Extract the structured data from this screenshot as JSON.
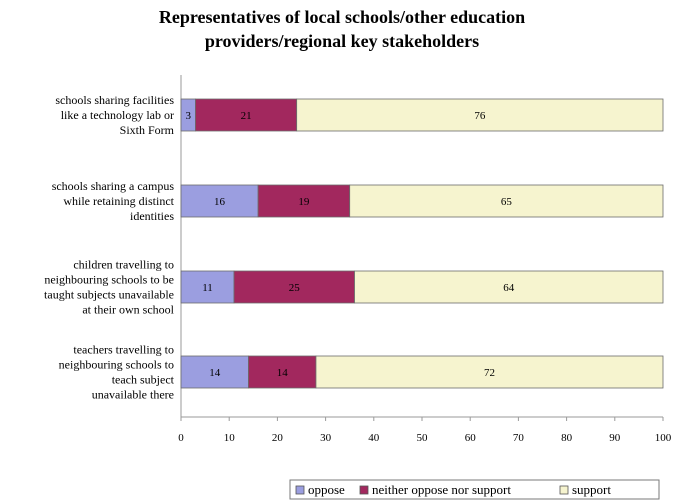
{
  "chart_data": {
    "type": "bar",
    "orientation": "horizontal",
    "stacked": true,
    "title_lines": [
      "Representatives of local schools/other education",
      "providers/regional key stakeholders"
    ],
    "categories": [
      "schools sharing facilities like a technology lab or Sixth Form",
      "schools sharing a campus while retaining distinct identities",
      "children travelling to neighbouring schools to be taught subjects unavailable at their own school",
      "teachers travelling to neighbouring schools to teach subject unavailable there"
    ],
    "category_lines": [
      [
        "schools sharing facilities",
        "like a technology lab or",
        "Sixth Form"
      ],
      [
        "schools sharing a campus",
        "while retaining distinct",
        "identities"
      ],
      [
        "children travelling to",
        "neighbouring schools to be",
        "taught subjects unavailable",
        "at their own school"
      ],
      [
        "teachers travelling to",
        "neighbouring schools to",
        "teach subject",
        "unavailable there"
      ]
    ],
    "series": [
      {
        "name": "oppose",
        "color": "#9b9ee0",
        "values": [
          3,
          16,
          11,
          14
        ]
      },
      {
        "name": "neither oppose nor support",
        "color": "#a2285e",
        "values": [
          21,
          19,
          25,
          14
        ]
      },
      {
        "name": "support",
        "color": "#f6f4cf",
        "values": [
          76,
          65,
          64,
          72
        ]
      }
    ],
    "xlim": [
      0,
      100
    ],
    "xticks": [
      0,
      10,
      20,
      30,
      40,
      50,
      60,
      70,
      80,
      90,
      100
    ],
    "grid": false,
    "legend_position": "bottom-right"
  }
}
